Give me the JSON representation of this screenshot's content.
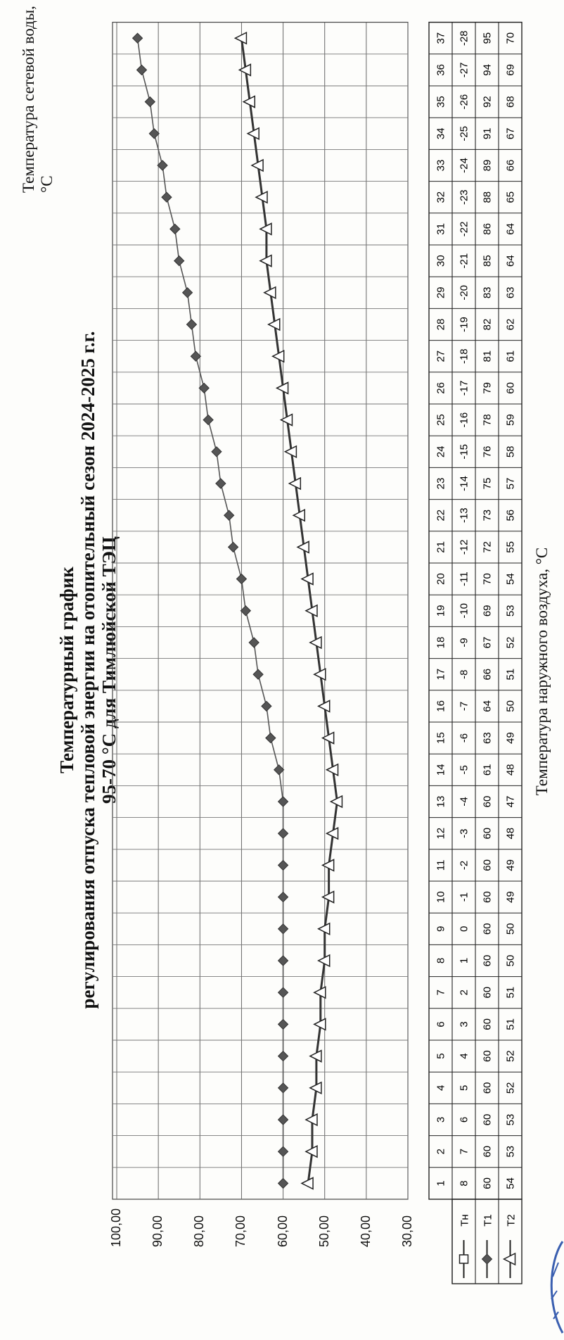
{
  "header": {
    "title": "Температурный график",
    "subtitle_line1": "регулирования отпуска тепловой энергии на отопительный сезон 2024-2025 г.г.",
    "subtitle_line2": "95-70 °С   для  Тимлюйской ТЭЦ"
  },
  "chart_data": {
    "type": "line",
    "ylabel": "Температура сетевой воды, °С",
    "xlabel": "Температура наружного воздуха, °С",
    "ylim": [
      30,
      100
    ],
    "yticks": [
      "100,00",
      "90,00",
      "80,00",
      "70,00",
      "60,00",
      "50,00",
      "40,00",
      "30,00"
    ],
    "grid": true,
    "legend_position": "left (table rows)",
    "categories": [
      "1",
      "2",
      "3",
      "4",
      "5",
      "6",
      "7",
      "8",
      "9",
      "10",
      "11",
      "12",
      "13",
      "14",
      "15",
      "16",
      "17",
      "18",
      "19",
      "20",
      "21",
      "22",
      "23",
      "24",
      "25",
      "26",
      "27",
      "28",
      "29",
      "30",
      "31",
      "32",
      "33",
      "34",
      "35",
      "36",
      "37"
    ],
    "series": [
      {
        "name": "Тн",
        "marker": "square",
        "values": [
          8,
          7,
          6,
          5,
          4,
          3,
          2,
          1,
          0,
          -1,
          -2,
          -3,
          -4,
          -5,
          -6,
          -7,
          -8,
          -9,
          -10,
          -11,
          -12,
          -13,
          -14,
          -15,
          -16,
          -17,
          -18,
          -19,
          -20,
          -21,
          -22,
          -23,
          -24,
          -25,
          -26,
          -27,
          -28
        ]
      },
      {
        "name": "Т1",
        "marker": "diamond",
        "color": "#555555",
        "values": [
          60,
          60,
          60,
          60,
          60,
          60,
          60,
          60,
          60,
          60,
          60,
          60,
          60,
          61,
          63,
          64,
          66,
          67,
          69,
          70,
          72,
          73,
          75,
          76,
          78,
          79,
          81,
          82,
          83,
          85,
          86,
          88,
          89,
          91,
          92,
          94,
          95
        ]
      },
      {
        "name": "Т2",
        "marker": "triangle",
        "color": "#333333",
        "values": [
          54,
          53,
          53,
          52,
          52,
          51,
          51,
          50,
          50,
          49,
          49,
          48,
          47,
          48,
          49,
          50,
          51,
          52,
          53,
          54,
          55,
          56,
          57,
          58,
          59,
          60,
          61,
          62,
          63,
          64,
          64,
          65,
          66,
          67,
          68,
          69,
          70
        ]
      }
    ]
  }
}
